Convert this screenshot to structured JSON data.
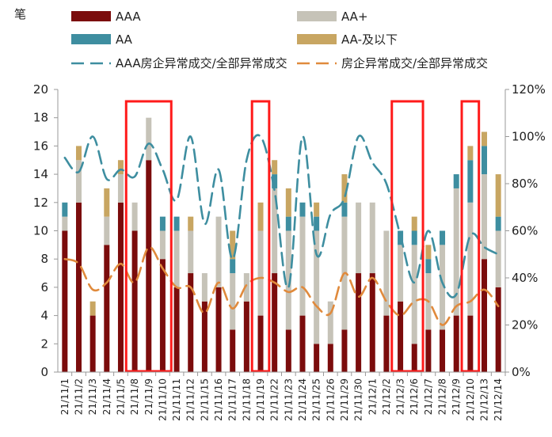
{
  "chart_data": {
    "type": "bar",
    "stacked": true,
    "ylabel": "笔",
    "ylim": [
      0,
      20
    ],
    "yticks": [
      0,
      2,
      4,
      6,
      8,
      10,
      12,
      14,
      16,
      18,
      20
    ],
    "y2lim": [
      0,
      1.2
    ],
    "y2ticks": [
      "0%",
      "20%",
      "40%",
      "60%",
      "80%",
      "100%",
      "120%"
    ],
    "categories": [
      "21/11/1",
      "21/11/2",
      "21/11/3",
      "21/11/4",
      "21/11/5",
      "21/11/8",
      "21/11/9",
      "21/11/10",
      "21/11/11",
      "21/11/12",
      "21/11/15",
      "21/11/16",
      "21/11/17",
      "21/11/18",
      "21/11/19",
      "21/11/22",
      "21/11/23",
      "21/11/24",
      "21/11/25",
      "21/11/26",
      "21/11/29",
      "21/11/30",
      "21/12/1",
      "21/12/2",
      "21/12/3",
      "21/12/6",
      "21/12/7",
      "21/12/8",
      "21/12/9",
      "21/12/10",
      "21/12/13",
      "21/12/14"
    ],
    "series": [
      {
        "name": "AAA",
        "color": "#7b0c0c",
        "values": [
          10,
          12,
          4,
          9,
          12,
          10,
          15,
          8,
          6,
          7,
          5,
          6,
          3,
          5,
          4,
          7,
          3,
          4,
          2,
          2,
          3,
          7,
          7,
          4,
          5,
          2,
          3,
          3,
          4,
          4,
          8,
          6
        ]
      },
      {
        "name": "AA+",
        "color": "#c6c3b8",
        "values": [
          1,
          3,
          0,
          2,
          2,
          2,
          3,
          2,
          4,
          3,
          2,
          5,
          4,
          2,
          6,
          6,
          7,
          7,
          8,
          3,
          8,
          5,
          5,
          6,
          4,
          7,
          4,
          6,
          9,
          8,
          6,
          4
        ]
      },
      {
        "name": "AA",
        "color": "#3e8ea0",
        "values": [
          1,
          0,
          0,
          0,
          0,
          0,
          0,
          1,
          1,
          0,
          0,
          0,
          1,
          0,
          0,
          1,
          1,
          1,
          1,
          0,
          1,
          0,
          0,
          0,
          1,
          1,
          1,
          1,
          1,
          3,
          2,
          1
        ]
      },
      {
        "name": "AA-及以下",
        "color": "#c8a662",
        "values": [
          0,
          1,
          1,
          2,
          1,
          0,
          0,
          0,
          0,
          1,
          0,
          0,
          2,
          0,
          2,
          1,
          2,
          0,
          1,
          0,
          2,
          0,
          0,
          0,
          0,
          1,
          1,
          0,
          0,
          1,
          1,
          3
        ]
      },
      {
        "name": "AAA房企异常成交/全部异常成交",
        "type": "line",
        "axis": "right",
        "style": "dashed",
        "color": "#3e8ea0",
        "values": [
          0.91,
          0.85,
          1.0,
          0.82,
          0.86,
          0.83,
          0.97,
          0.86,
          0.73,
          1.0,
          0.63,
          0.86,
          0.48,
          0.9,
          1.0,
          0.77,
          0.36,
          1.0,
          0.5,
          0.67,
          0.74,
          1.0,
          0.89,
          0.8,
          0.58,
          0.38,
          0.6,
          0.38,
          0.33,
          0.58,
          0.53,
          0.5
        ]
      },
      {
        "name": "房企异常成交/全部异常成交",
        "type": "line",
        "axis": "right",
        "style": "dashed",
        "color": "#e08a3c",
        "values": [
          0.48,
          0.46,
          0.35,
          0.38,
          0.46,
          0.38,
          0.53,
          0.44,
          0.36,
          0.36,
          0.25,
          0.38,
          0.27,
          0.37,
          0.4,
          0.38,
          0.34,
          0.36,
          0.28,
          0.25,
          0.42,
          0.32,
          0.4,
          0.3,
          0.24,
          0.3,
          0.3,
          0.2,
          0.28,
          0.3,
          0.35,
          0.28
        ]
      }
    ],
    "highlights": [
      [
        5,
        7
      ],
      [
        14,
        14
      ],
      [
        24,
        25
      ],
      [
        29,
        29
      ]
    ],
    "highlight_color": "#ff1a1a",
    "legend_placement": "top",
    "grid": false
  }
}
